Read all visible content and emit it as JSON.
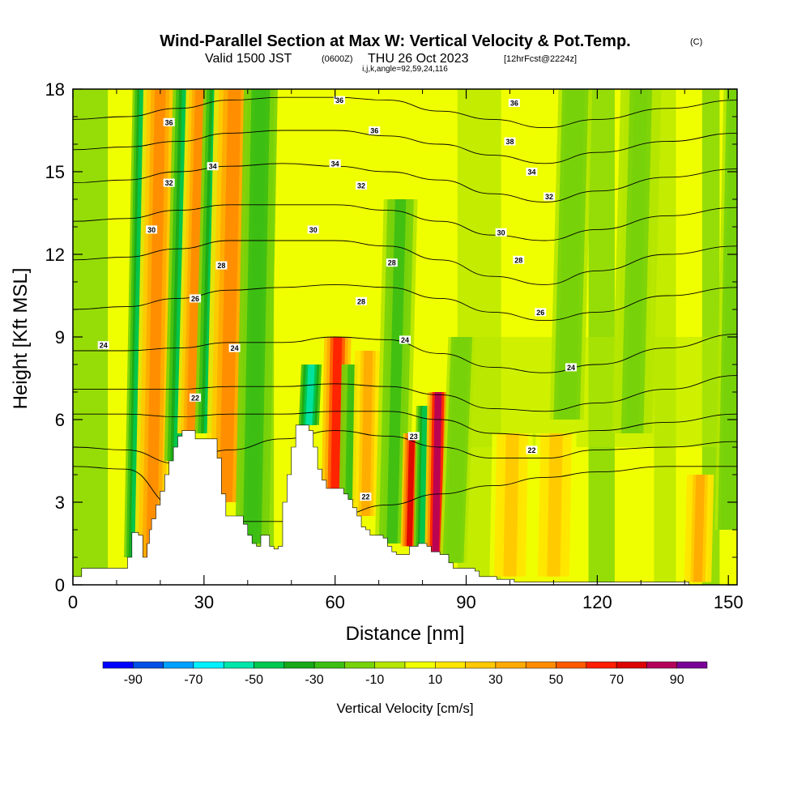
{
  "title": {
    "main": "Wind-Parallel Section at Max W: Vertical Velocity & Pot.Temp.",
    "copyright": "(C)",
    "valid_a": "Valid 1500 JST",
    "valid_zulu": "(0600Z)",
    "valid_b": "THU 26 Oct 2023",
    "fcst": "[12hrFcst@2224z]",
    "params": "i,j,k,angle=92,59,24,116"
  },
  "chart_data": {
    "type": "heatmap",
    "xlabel": "Distance [nm]",
    "ylabel": "Height [Kft MSL]",
    "xlim": [
      0,
      152
    ],
    "ylim": [
      0,
      18
    ],
    "x_ticks": [
      0,
      30,
      60,
      90,
      120,
      150
    ],
    "y_ticks": [
      0,
      3,
      6,
      9,
      12,
      15,
      18
    ],
    "grid": false,
    "colorbar": {
      "label": "Vertical Velocity [cm/s]",
      "levels": [
        -100,
        -90,
        -80,
        -70,
        -60,
        -50,
        -40,
        -30,
        -20,
        -10,
        0,
        10,
        20,
        30,
        40,
        50,
        60,
        70,
        80,
        90,
        100
      ],
      "tick_labels": [
        "-90",
        "-70",
        "-50",
        "-30",
        "-10",
        "10",
        "30",
        "50",
        "70",
        "90"
      ],
      "tick_values": [
        -90,
        -70,
        -50,
        -30,
        -10,
        10,
        30,
        50,
        70,
        90
      ],
      "colors": [
        "#0000ff",
        "#0050e6",
        "#00a0ff",
        "#00f0ff",
        "#00e6aa",
        "#00c850",
        "#18a818",
        "#3cbe14",
        "#78d20a",
        "#b4e600",
        "#f0ff00",
        "#ffe600",
        "#ffc800",
        "#ffaa00",
        "#ff8c00",
        "#ff5a00",
        "#ff1e00",
        "#dc0000",
        "#b4005a",
        "#780096"
      ]
    },
    "terrain": {
      "x": [
        0,
        2,
        12,
        12.5,
        13.5,
        15,
        16,
        17,
        17.5,
        18,
        19,
        20,
        21,
        22,
        23,
        24,
        25,
        26,
        27,
        28,
        29,
        30,
        31,
        32,
        33,
        34,
        35,
        36,
        37,
        38,
        39,
        40,
        41,
        42,
        43,
        44,
        45,
        46,
        47,
        48,
        49,
        50,
        51,
        52,
        53,
        54,
        55,
        56,
        57,
        58,
        59,
        60,
        61,
        62,
        63,
        64,
        65,
        66,
        67,
        68,
        69,
        70,
        71,
        72,
        73,
        74,
        75,
        76,
        77,
        78,
        79,
        80,
        81,
        82,
        83,
        84,
        85,
        86,
        87,
        88,
        89,
        90,
        91,
        92,
        93,
        96,
        97,
        100,
        101,
        140,
        141,
        152
      ],
      "y": [
        0.3,
        0.6,
        0.6,
        1.0,
        1.9,
        1.8,
        1.0,
        1.5,
        2.0,
        2.4,
        2.9,
        3.4,
        4.0,
        4.5,
        5.0,
        5.4,
        5.6,
        5.6,
        5.6,
        5.3,
        5.3,
        5.3,
        5.3,
        5.3,
        4.6,
        3.3,
        2.5,
        2.5,
        2.5,
        2.5,
        2.2,
        1.8,
        1.5,
        1.4,
        1.8,
        1.8,
        1.4,
        1.3,
        1.4,
        3.0,
        4.0,
        5.0,
        5.8,
        5.8,
        5.8,
        5.6,
        5.0,
        4.2,
        3.8,
        3.5,
        3.5,
        3.5,
        3.5,
        3.3,
        3.1,
        2.8,
        2.5,
        2.1,
        2.0,
        1.8,
        1.8,
        1.8,
        1.7,
        1.4,
        1.2,
        1.1,
        1.1,
        1.1,
        1.4,
        1.4,
        1.5,
        1.5,
        1.4,
        1.2,
        1.2,
        1.1,
        1.1,
        0.8,
        0.6,
        0.6,
        0.6,
        0.6,
        0.6,
        0.5,
        0.3,
        0.3,
        0.2,
        0.2,
        0.1,
        0.1,
        0.0,
        0.0
      ]
    },
    "vertical_velocity_features": [
      {
        "x": 14,
        "w": 1.5,
        "y0": 1.0,
        "y1": 18,
        "v": -45
      },
      {
        "x": 18,
        "w": 2.5,
        "y0": 1.0,
        "y1": 18,
        "v": 45
      },
      {
        "x": 24,
        "w": 2.0,
        "y0": 4.5,
        "y1": 18,
        "v": -45
      },
      {
        "x": 27,
        "w": 2.0,
        "y0": 5.5,
        "y1": 18,
        "v": 45
      },
      {
        "x": 31,
        "w": 2.0,
        "y0": 5.5,
        "y1": 18,
        "v": -45
      },
      {
        "x": 35,
        "w": 3.0,
        "y0": 3.0,
        "y1": 18,
        "v": 45
      },
      {
        "x": 41,
        "w": 2.5,
        "y0": 1.5,
        "y1": 18,
        "v": -30
      },
      {
        "x": 54,
        "w": 1.5,
        "y0": 5.8,
        "y1": 8.0,
        "v": -60
      },
      {
        "x": 60,
        "w": 2.0,
        "y0": 3.5,
        "y1": 9.0,
        "v": 65
      },
      {
        "x": 64,
        "w": 2.0,
        "y0": 3.0,
        "y1": 8.0,
        "v": -30
      },
      {
        "x": 67,
        "w": 2.0,
        "y0": 2.5,
        "y1": 8.5,
        "v": 30
      },
      {
        "x": 73,
        "w": 2.5,
        "y0": 1.5,
        "y1": 14.0,
        "v": -25
      },
      {
        "x": 77,
        "w": 1.3,
        "y0": 1.4,
        "y1": 5.5,
        "v": 75
      },
      {
        "x": 80,
        "w": 1.3,
        "y0": 1.4,
        "y1": 6.5,
        "v": -45
      },
      {
        "x": 83,
        "w": 1.6,
        "y0": 1.1,
        "y1": 7.0,
        "v": 85
      },
      {
        "x": 87,
        "w": 2.0,
        "y0": 0.8,
        "y1": 9.0,
        "v": -20
      },
      {
        "x": 100,
        "w": 3.0,
        "y0": 0.3,
        "y1": 5.5,
        "v": 25
      },
      {
        "x": 110,
        "w": 3.0,
        "y0": 0.3,
        "y1": 5.5,
        "v": 20
      },
      {
        "x": 113,
        "w": 2.5,
        "y0": 6.0,
        "y1": 18,
        "v": -20
      },
      {
        "x": 128,
        "w": 3.0,
        "y0": 5.5,
        "y1": 18,
        "v": -15
      },
      {
        "x": 143,
        "w": 2.0,
        "y0": 0.1,
        "y1": 4.0,
        "v": 35
      },
      {
        "x": 150,
        "w": 2.0,
        "y0": 2.0,
        "y1": 18,
        "v": -20
      }
    ],
    "theta_contours": [
      {
        "label": "22",
        "y": [
          4.3,
          4.2,
          2.8,
          2.3,
          2.3,
          2.5,
          2.9,
          3.3,
          3.6,
          3.9,
          4.1,
          4.3,
          4.3
        ]
      },
      {
        "label": "22",
        "y": [
          5.0,
          4.9,
          4.4,
          4.9,
          5.3,
          5.6,
          5.4,
          5.0,
          4.6,
          4.6,
          4.9,
          5.0,
          5.2
        ]
      },
      {
        "label": "24",
        "y": [
          6.2,
          6.2,
          6.1,
          6.2,
          6.2,
          6.3,
          6.3,
          6.0,
          5.5,
          5.4,
          5.6,
          5.9,
          6.2
        ]
      },
      {
        "label": "24",
        "y": [
          7.1,
          7.1,
          7.1,
          7.2,
          7.2,
          7.3,
          7.2,
          6.9,
          6.4,
          6.3,
          6.6,
          7.1,
          7.6
        ]
      },
      {
        "label": "24",
        "y": [
          8.5,
          8.5,
          8.6,
          8.8,
          8.8,
          9.0,
          8.9,
          8.4,
          7.9,
          7.7,
          8.0,
          8.6,
          9.1
        ]
      },
      {
        "label": "26",
        "y": [
          10.0,
          10.1,
          10.4,
          10.7,
          10.8,
          10.9,
          10.8,
          10.4,
          9.9,
          9.6,
          9.9,
          10.5,
          10.8
        ]
      },
      {
        "label": "28",
        "y": [
          11.8,
          11.9,
          12.2,
          12.5,
          12.5,
          12.5,
          12.3,
          11.8,
          11.2,
          10.9,
          11.4,
          12.0,
          12.3
        ]
      },
      {
        "label": "30",
        "y": [
          13.2,
          13.3,
          13.6,
          13.8,
          13.8,
          13.8,
          13.6,
          13.2,
          12.7,
          12.5,
          12.9,
          13.4,
          13.7
        ]
      },
      {
        "label": "32",
        "y": [
          14.6,
          14.7,
          15.0,
          15.2,
          15.3,
          15.2,
          15.0,
          14.7,
          14.2,
          13.9,
          14.3,
          14.8,
          15.1
        ]
      },
      {
        "label": "34",
        "y": [
          15.8,
          15.9,
          16.1,
          16.4,
          16.5,
          16.5,
          16.3,
          16.0,
          15.6,
          15.3,
          15.7,
          16.1,
          16.4
        ]
      },
      {
        "label": "36",
        "y": [
          16.9,
          17.0,
          17.3,
          17.6,
          17.7,
          17.7,
          17.6,
          17.2,
          16.9,
          16.6,
          16.9,
          17.3,
          17.6
        ]
      }
    ],
    "theta_contour_x": [
      0,
      12,
      24,
      36,
      48,
      60,
      72,
      84,
      96,
      108,
      120,
      136,
      152
    ],
    "contour_labels": [
      {
        "text": "24",
        "x": 7,
        "y": 8.7
      },
      {
        "text": "36",
        "x": 22,
        "y": 16.8
      },
      {
        "text": "32",
        "x": 22,
        "y": 14.6
      },
      {
        "text": "30",
        "x": 18,
        "y": 12.9
      },
      {
        "text": "26",
        "x": 28,
        "y": 10.4
      },
      {
        "text": "22",
        "x": 28,
        "y": 6.8
      },
      {
        "text": "34",
        "x": 32,
        "y": 15.2
      },
      {
        "text": "28",
        "x": 34,
        "y": 11.6
      },
      {
        "text": "24",
        "x": 37,
        "y": 8.6
      },
      {
        "text": "36",
        "x": 61,
        "y": 17.6
      },
      {
        "text": "36",
        "x": 69,
        "y": 16.5
      },
      {
        "text": "34",
        "x": 60,
        "y": 15.3
      },
      {
        "text": "32",
        "x": 66,
        "y": 14.5
      },
      {
        "text": "30",
        "x": 55,
        "y": 12.9
      },
      {
        "text": "28",
        "x": 73,
        "y": 11.7
      },
      {
        "text": "28",
        "x": 66,
        "y": 10.3
      },
      {
        "text": "24",
        "x": 76,
        "y": 8.9
      },
      {
        "text": "23",
        "x": 78,
        "y": 5.4
      },
      {
        "text": "22",
        "x": 67,
        "y": 3.2
      },
      {
        "text": "36",
        "x": 101,
        "y": 17.5
      },
      {
        "text": "38",
        "x": 100,
        "y": 16.1
      },
      {
        "text": "34",
        "x": 105,
        "y": 15.0
      },
      {
        "text": "32",
        "x": 109,
        "y": 14.1
      },
      {
        "text": "30",
        "x": 98,
        "y": 12.8
      },
      {
        "text": "28",
        "x": 102,
        "y": 11.8
      },
      {
        "text": "26",
        "x": 107,
        "y": 9.9
      },
      {
        "text": "24",
        "x": 114,
        "y": 7.9
      },
      {
        "text": "22",
        "x": 105,
        "y": 4.9
      }
    ]
  }
}
